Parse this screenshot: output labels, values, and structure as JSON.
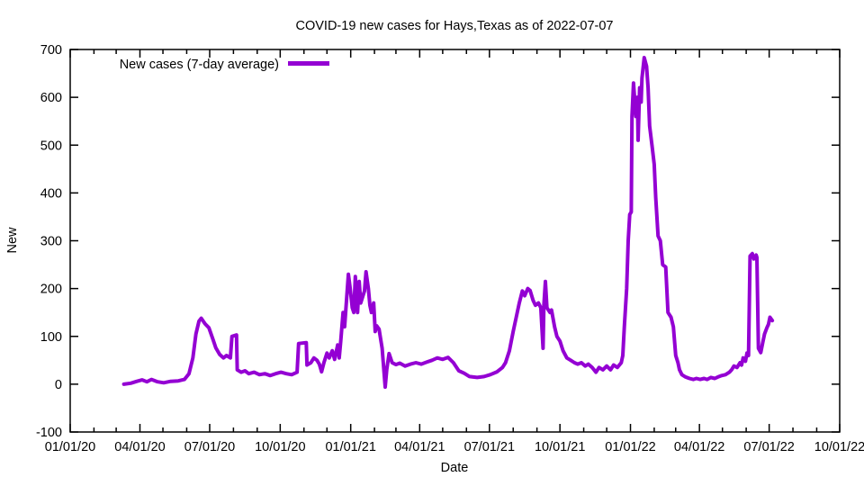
{
  "title": "COVID-19 new cases for Hays,Texas as of 2022-07-07",
  "legend": {
    "label": "New cases (7-day average)"
  },
  "colors": {
    "line": "#9400d3",
    "axis": "#000000",
    "background": "#ffffff"
  },
  "chart_data": {
    "type": "line",
    "title": "COVID-19 new cases for Hays,Texas as of 2022-07-07",
    "xlabel": "Date",
    "ylabel": "New",
    "ylim": [
      -100,
      700
    ],
    "xlim": [
      "2020-01-01",
      "2022-10-01"
    ],
    "grid": false,
    "legend_position": "top-left",
    "y_ticks": [
      -100,
      0,
      100,
      200,
      300,
      400,
      500,
      600,
      700
    ],
    "x_ticks": [
      {
        "date": "2020-01-01",
        "label": "01/01/20"
      },
      {
        "date": "2020-04-01",
        "label": "04/01/20"
      },
      {
        "date": "2020-07-01",
        "label": "07/01/20"
      },
      {
        "date": "2020-10-01",
        "label": "10/01/20"
      },
      {
        "date": "2021-01-01",
        "label": "01/01/21"
      },
      {
        "date": "2021-04-01",
        "label": "04/01/21"
      },
      {
        "date": "2021-07-01",
        "label": "07/01/21"
      },
      {
        "date": "2021-10-01",
        "label": "10/01/21"
      },
      {
        "date": "2022-01-01",
        "label": "01/01/22"
      },
      {
        "date": "2022-04-01",
        "label": "04/01/22"
      },
      {
        "date": "2022-07-01",
        "label": "07/01/22"
      },
      {
        "date": "2022-10-01",
        "label": "10/01/22"
      }
    ],
    "series": [
      {
        "name": "New cases (7-day average)",
        "color": "#9400d3",
        "points": [
          [
            "2020-03-11",
            0
          ],
          [
            "2020-03-20",
            2
          ],
          [
            "2020-03-28",
            6
          ],
          [
            "2020-04-04",
            9
          ],
          [
            "2020-04-10",
            5
          ],
          [
            "2020-04-16",
            10
          ],
          [
            "2020-04-24",
            5
          ],
          [
            "2020-05-02",
            3
          ],
          [
            "2020-05-11",
            6
          ],
          [
            "2020-05-21",
            7
          ],
          [
            "2020-05-29",
            10
          ],
          [
            "2020-06-04",
            22
          ],
          [
            "2020-06-09",
            55
          ],
          [
            "2020-06-13",
            105
          ],
          [
            "2020-06-17",
            132
          ],
          [
            "2020-06-20",
            138
          ],
          [
            "2020-06-25",
            126
          ],
          [
            "2020-06-30",
            118
          ],
          [
            "2020-07-05",
            95
          ],
          [
            "2020-07-09",
            76
          ],
          [
            "2020-07-14",
            62
          ],
          [
            "2020-07-19",
            55
          ],
          [
            "2020-07-23",
            60
          ],
          [
            "2020-07-28",
            55
          ],
          [
            "2020-07-30",
            100
          ],
          [
            "2020-08-05",
            103
          ],
          [
            "2020-08-06",
            30
          ],
          [
            "2020-08-11",
            25
          ],
          [
            "2020-08-16",
            28
          ],
          [
            "2020-08-21",
            22
          ],
          [
            "2020-08-28",
            25
          ],
          [
            "2020-09-04",
            20
          ],
          [
            "2020-09-11",
            22
          ],
          [
            "2020-09-18",
            18
          ],
          [
            "2020-09-25",
            22
          ],
          [
            "2020-10-02",
            25
          ],
          [
            "2020-10-09",
            22
          ],
          [
            "2020-10-16",
            20
          ],
          [
            "2020-10-23",
            25
          ],
          [
            "2020-10-25",
            85
          ],
          [
            "2020-11-04",
            87
          ],
          [
            "2020-11-05",
            40
          ],
          [
            "2020-11-10",
            45
          ],
          [
            "2020-11-14",
            55
          ],
          [
            "2020-11-18",
            50
          ],
          [
            "2020-11-21",
            42
          ],
          [
            "2020-11-24",
            26
          ],
          [
            "2020-11-27",
            45
          ],
          [
            "2020-12-01",
            65
          ],
          [
            "2020-12-04",
            55
          ],
          [
            "2020-12-08",
            70
          ],
          [
            "2020-12-11",
            52
          ],
          [
            "2020-12-15",
            82
          ],
          [
            "2020-12-17",
            55
          ],
          [
            "2020-12-19",
            90
          ],
          [
            "2020-12-22",
            150
          ],
          [
            "2020-12-24",
            120
          ],
          [
            "2020-12-29",
            230
          ],
          [
            "2020-12-31",
            205
          ],
          [
            "2021-01-03",
            160
          ],
          [
            "2021-01-05",
            150
          ],
          [
            "2021-01-07",
            225
          ],
          [
            "2021-01-10",
            150
          ],
          [
            "2021-01-12",
            215
          ],
          [
            "2021-01-14",
            170
          ],
          [
            "2021-01-17",
            185
          ],
          [
            "2021-01-19",
            195
          ],
          [
            "2021-01-21",
            235
          ],
          [
            "2021-01-24",
            200
          ],
          [
            "2021-01-26",
            165
          ],
          [
            "2021-01-28",
            150
          ],
          [
            "2021-01-31",
            170
          ],
          [
            "2021-02-02",
            110
          ],
          [
            "2021-02-04",
            122
          ],
          [
            "2021-02-07",
            115
          ],
          [
            "2021-02-09",
            95
          ],
          [
            "2021-02-11",
            75
          ],
          [
            "2021-02-15",
            -6
          ],
          [
            "2021-02-17",
            30
          ],
          [
            "2021-02-20",
            64
          ],
          [
            "2021-02-24",
            45
          ],
          [
            "2021-03-01",
            41
          ],
          [
            "2021-03-06",
            44
          ],
          [
            "2021-03-13",
            38
          ],
          [
            "2021-03-20",
            42
          ],
          [
            "2021-03-27",
            45
          ],
          [
            "2021-04-03",
            42
          ],
          [
            "2021-04-10",
            46
          ],
          [
            "2021-04-17",
            50
          ],
          [
            "2021-04-24",
            55
          ],
          [
            "2021-05-01",
            52
          ],
          [
            "2021-05-08",
            56
          ],
          [
            "2021-05-15",
            45
          ],
          [
            "2021-05-22",
            28
          ],
          [
            "2021-05-29",
            23
          ],
          [
            "2021-06-05",
            16
          ],
          [
            "2021-06-15",
            14
          ],
          [
            "2021-06-24",
            16
          ],
          [
            "2021-07-02",
            20
          ],
          [
            "2021-07-11",
            26
          ],
          [
            "2021-07-18",
            35
          ],
          [
            "2021-07-22",
            45
          ],
          [
            "2021-07-27",
            70
          ],
          [
            "2021-08-01",
            110
          ],
          [
            "2021-08-05",
            140
          ],
          [
            "2021-08-09",
            170
          ],
          [
            "2021-08-13",
            195
          ],
          [
            "2021-08-16",
            185
          ],
          [
            "2021-08-20",
            200
          ],
          [
            "2021-08-23",
            196
          ],
          [
            "2021-08-27",
            175
          ],
          [
            "2021-08-30",
            165
          ],
          [
            "2021-09-03",
            170
          ],
          [
            "2021-09-06",
            160
          ],
          [
            "2021-09-09",
            75
          ],
          [
            "2021-09-10",
            165
          ],
          [
            "2021-09-12",
            215
          ],
          [
            "2021-09-14",
            160
          ],
          [
            "2021-09-18",
            150
          ],
          [
            "2021-09-20",
            155
          ],
          [
            "2021-09-24",
            120
          ],
          [
            "2021-09-27",
            100
          ],
          [
            "2021-10-01",
            90
          ],
          [
            "2021-10-05",
            70
          ],
          [
            "2021-10-10",
            55
          ],
          [
            "2021-10-15",
            50
          ],
          [
            "2021-10-20",
            45
          ],
          [
            "2021-10-24",
            42
          ],
          [
            "2021-10-29",
            45
          ],
          [
            "2021-11-03",
            38
          ],
          [
            "2021-11-07",
            42
          ],
          [
            "2021-11-12",
            35
          ],
          [
            "2021-11-17",
            25
          ],
          [
            "2021-11-21",
            35
          ],
          [
            "2021-11-26",
            30
          ],
          [
            "2021-12-01",
            38
          ],
          [
            "2021-12-06",
            30
          ],
          [
            "2021-12-10",
            40
          ],
          [
            "2021-12-15",
            35
          ],
          [
            "2021-12-20",
            45
          ],
          [
            "2021-12-22",
            60
          ],
          [
            "2021-12-24",
            120
          ],
          [
            "2021-12-27",
            200
          ],
          [
            "2021-12-29",
            300
          ],
          [
            "2021-12-31",
            355
          ],
          [
            "2022-01-02",
            360
          ],
          [
            "2022-01-03",
            560
          ],
          [
            "2022-01-05",
            630
          ],
          [
            "2022-01-08",
            560
          ],
          [
            "2022-01-10",
            600
          ],
          [
            "2022-01-11",
            510
          ],
          [
            "2022-01-13",
            620
          ],
          [
            "2022-01-15",
            590
          ],
          [
            "2022-01-16",
            640
          ],
          [
            "2022-01-19",
            683
          ],
          [
            "2022-01-22",
            665
          ],
          [
            "2022-01-24",
            620
          ],
          [
            "2022-01-26",
            540
          ],
          [
            "2022-01-29",
            500
          ],
          [
            "2022-02-01",
            460
          ],
          [
            "2022-02-03",
            390
          ],
          [
            "2022-02-06",
            310
          ],
          [
            "2022-02-09",
            300
          ],
          [
            "2022-02-12",
            250
          ],
          [
            "2022-02-16",
            245
          ],
          [
            "2022-02-19",
            150
          ],
          [
            "2022-02-23",
            140
          ],
          [
            "2022-02-26",
            120
          ],
          [
            "2022-03-01",
            60
          ],
          [
            "2022-03-04",
            45
          ],
          [
            "2022-03-06",
            30
          ],
          [
            "2022-03-09",
            20
          ],
          [
            "2022-03-14",
            15
          ],
          [
            "2022-03-19",
            12
          ],
          [
            "2022-03-24",
            10
          ],
          [
            "2022-03-28",
            12
          ],
          [
            "2022-04-02",
            10
          ],
          [
            "2022-04-07",
            12
          ],
          [
            "2022-04-11",
            10
          ],
          [
            "2022-04-16",
            14
          ],
          [
            "2022-04-21",
            12
          ],
          [
            "2022-04-25",
            15
          ],
          [
            "2022-04-30",
            18
          ],
          [
            "2022-05-05",
            20
          ],
          [
            "2022-05-10",
            25
          ],
          [
            "2022-05-13",
            30
          ],
          [
            "2022-05-16",
            38
          ],
          [
            "2022-05-20",
            35
          ],
          [
            "2022-05-24",
            45
          ],
          [
            "2022-05-26",
            40
          ],
          [
            "2022-05-28",
            55
          ],
          [
            "2022-05-31",
            48
          ],
          [
            "2022-06-02",
            65
          ],
          [
            "2022-06-04",
            60
          ],
          [
            "2022-06-06",
            268
          ],
          [
            "2022-06-09",
            273
          ],
          [
            "2022-06-11",
            262
          ],
          [
            "2022-06-14",
            270
          ],
          [
            "2022-06-15",
            265
          ],
          [
            "2022-06-17",
            75
          ],
          [
            "2022-06-20",
            66
          ],
          [
            "2022-06-23",
            90
          ],
          [
            "2022-06-25",
            105
          ],
          [
            "2022-06-28",
            118
          ],
          [
            "2022-06-30",
            125
          ],
          [
            "2022-07-02",
            140
          ],
          [
            "2022-07-05",
            133
          ]
        ]
      }
    ]
  }
}
